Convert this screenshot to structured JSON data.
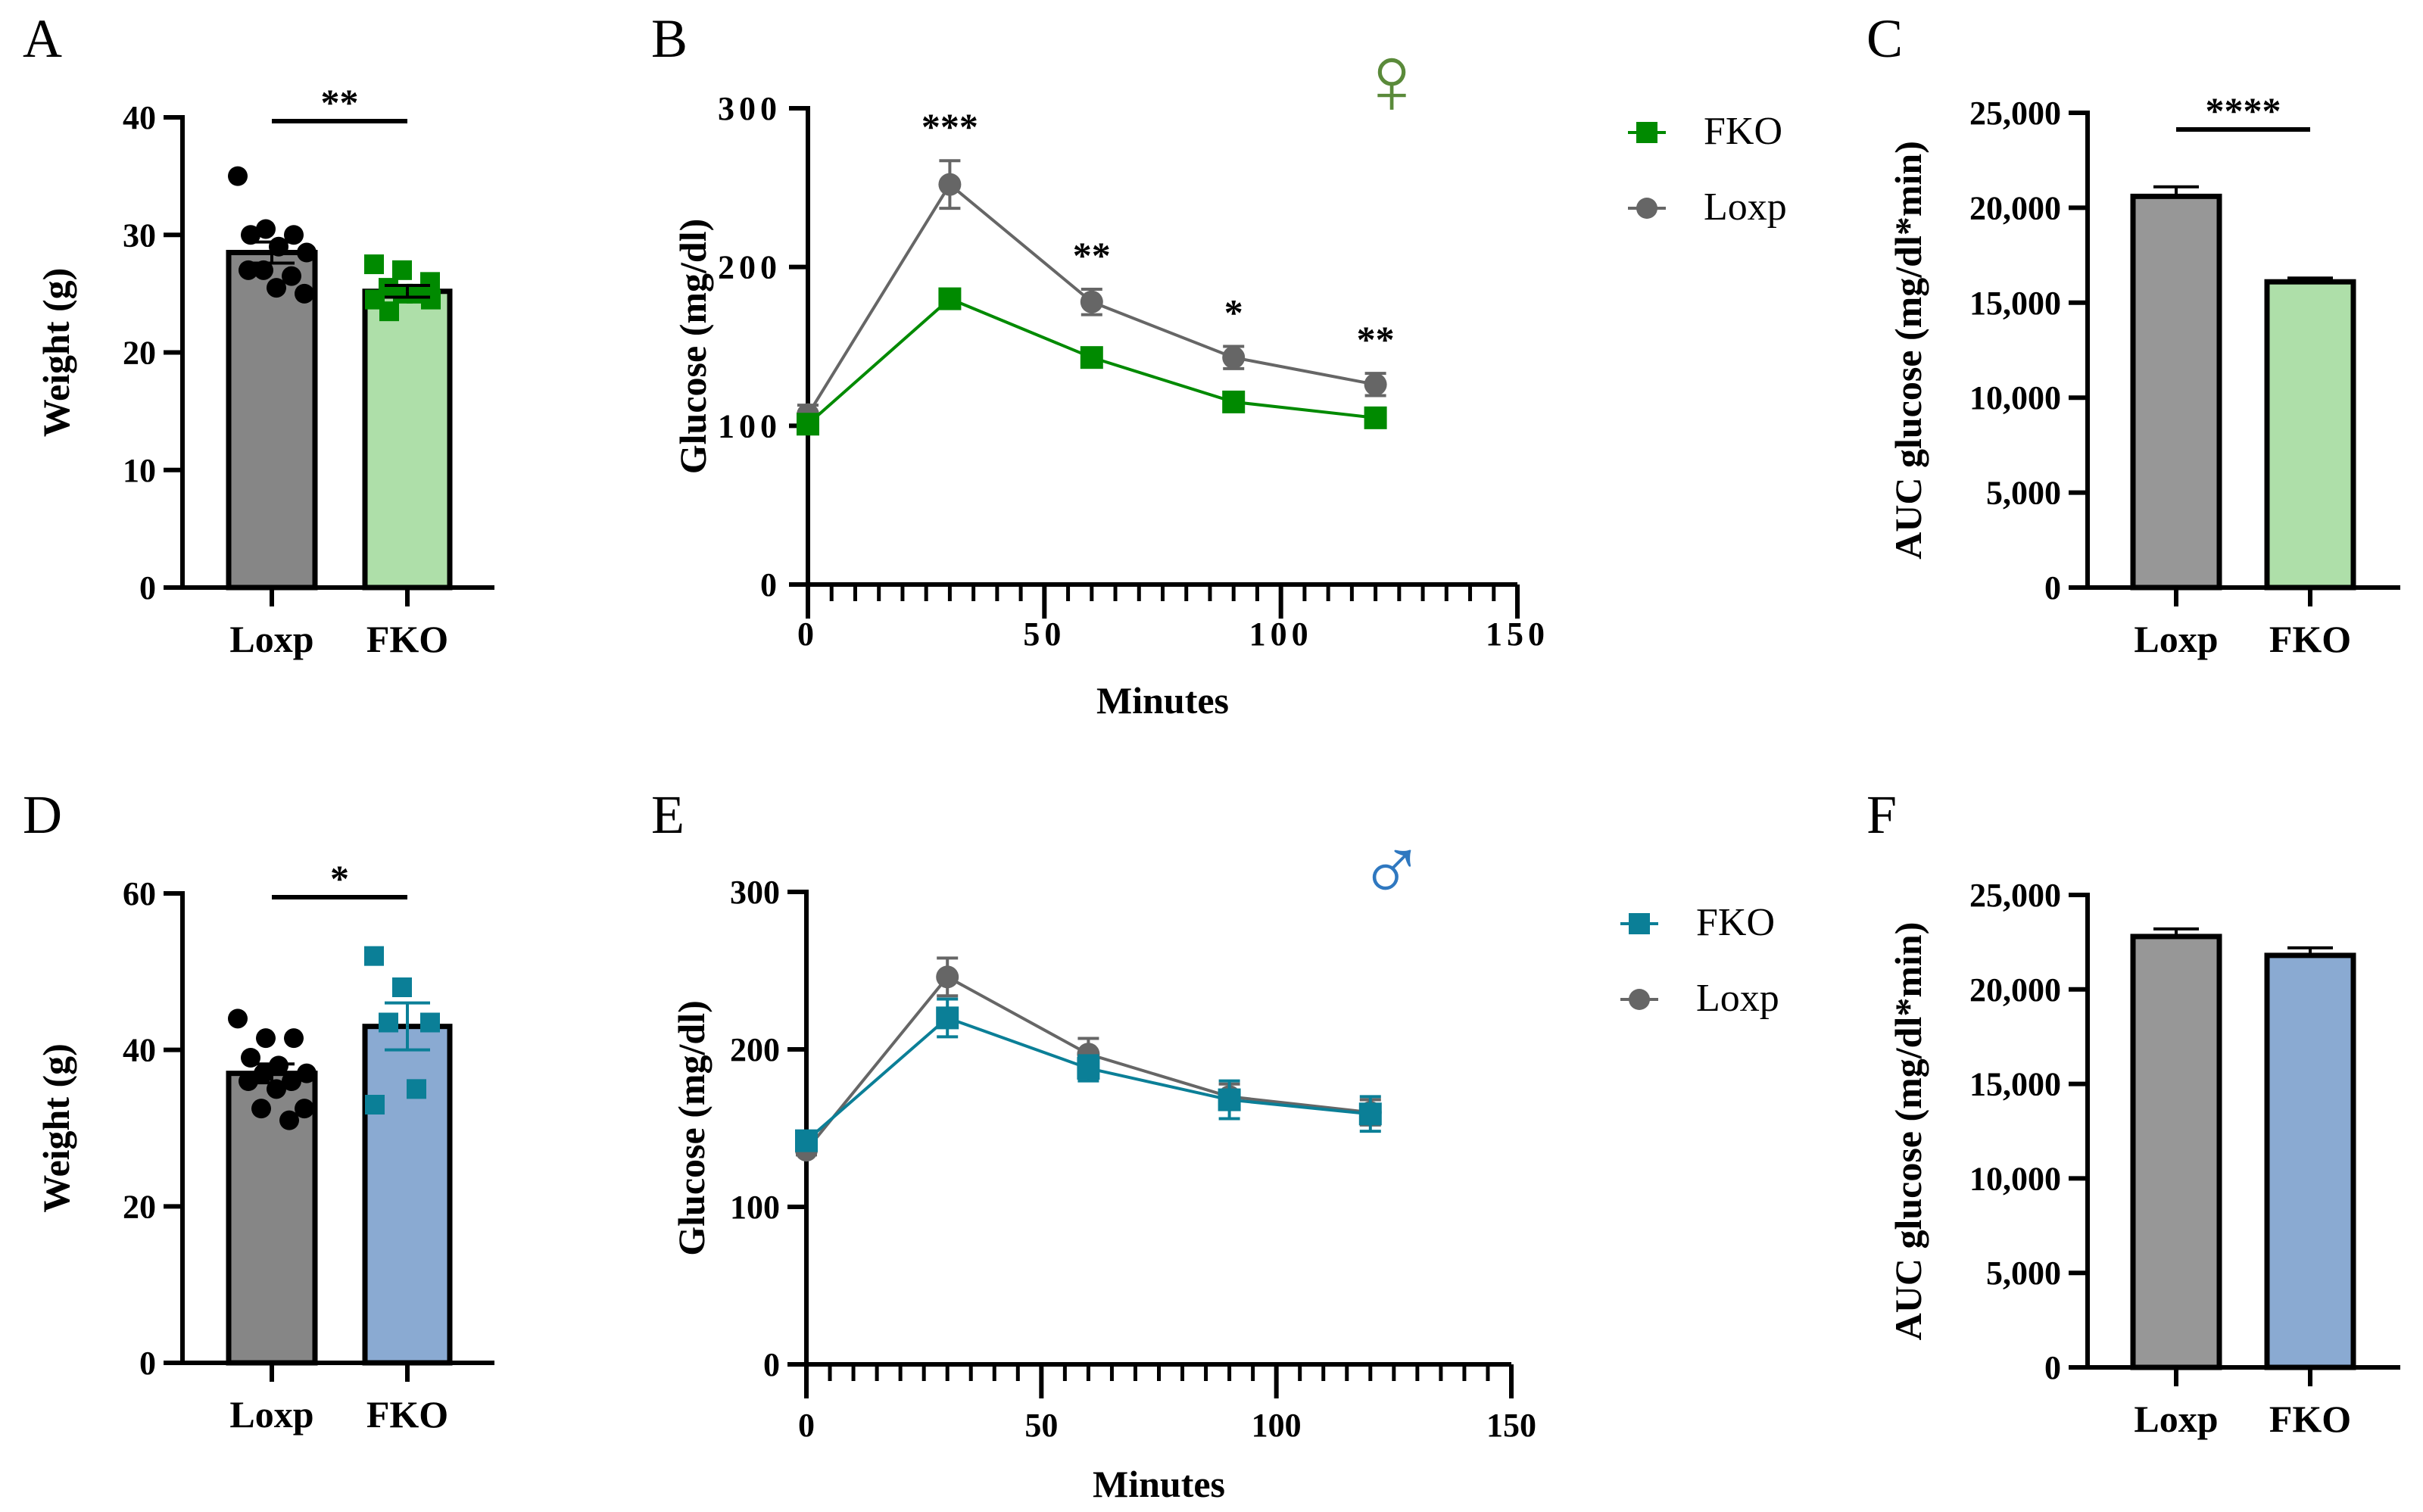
{
  "panels": {
    "A": "A",
    "B": "B",
    "C": "C",
    "D": "D",
    "E": "E",
    "F": "F"
  },
  "colors": {
    "loxp_bar": "#868686",
    "fko_green_bar": "#aedfa9",
    "fko_green": "#008a00",
    "fko_blue_bar": "#8aaad2",
    "fko_teal": "#0b7f97",
    "loxp_line": "#666666",
    "female": "#5a8a3a",
    "male": "#2f78c0"
  },
  "symbols": {
    "female": "♀",
    "male": "♂"
  },
  "chart_data": [
    {
      "id": "A",
      "type": "bar",
      "ylabel": "Weight (g)",
      "xlabel": "",
      "categories": [
        "Loxp",
        "FKO"
      ],
      "values": [
        28.5,
        25.2
      ],
      "sem": [
        0.9,
        0.5
      ],
      "ylim": [
        0,
        40
      ],
      "yticks": [
        "0",
        "10",
        "20",
        "30",
        "40"
      ],
      "significance": "**",
      "points": [
        [
          35,
          30.5,
          30,
          30,
          29,
          28.5,
          27,
          26.5,
          27,
          25.5,
          25
        ],
        [
          27.5,
          27,
          26,
          25.5,
          25,
          24.5,
          25,
          24.5,
          23.5
        ]
      ]
    },
    {
      "id": "B",
      "type": "line",
      "ylabel": "Glucose (mg/dl)",
      "xlabel": "Minutes",
      "x": [
        0,
        30,
        60,
        90,
        120
      ],
      "xlim": [
        0,
        150
      ],
      "ylim": [
        0,
        300
      ],
      "xticks": [
        "0",
        "50",
        "100",
        "150"
      ],
      "yticks": [
        "0",
        "100",
        "200",
        "300"
      ],
      "series": [
        {
          "name": "FKO",
          "values": [
            101,
            180,
            143,
            115,
            105
          ],
          "sem": [
            3,
            3,
            6,
            3,
            3
          ]
        },
        {
          "name": "Loxp",
          "values": [
            107,
            252,
            178,
            143,
            126
          ],
          "sem": [
            6,
            15,
            8,
            7,
            7
          ]
        }
      ],
      "annotations": [
        "",
        "***",
        "**",
        "*",
        "**"
      ],
      "legend": "right"
    },
    {
      "id": "C",
      "type": "bar",
      "ylabel": "AUC glucose (mg/dl*min)",
      "categories": [
        "Loxp",
        "FKO"
      ],
      "values": [
        20600,
        16100
      ],
      "sem": [
        500,
        200
      ],
      "ylim": [
        0,
        25000
      ],
      "yticks": [
        "0",
        "5,000",
        "10,000",
        "15,000",
        "20,000",
        "25,000"
      ],
      "significance": "****"
    },
    {
      "id": "D",
      "type": "bar",
      "ylabel": "Weight (g)",
      "categories": [
        "Loxp",
        "FKO"
      ],
      "values": [
        37,
        43
      ],
      "sem": [
        1.2,
        3
      ],
      "ylim": [
        0,
        60
      ],
      "yticks": [
        "0",
        "20",
        "40",
        "60"
      ],
      "significance": "*",
      "points": [
        [
          44,
          41.5,
          41.5,
          39,
          38,
          37,
          37,
          36,
          36,
          35,
          32.5,
          32.5,
          31
        ],
        [
          52,
          48,
          43.5,
          43.5,
          35,
          33
        ]
      ]
    },
    {
      "id": "E",
      "type": "line",
      "ylabel": "Glucose (mg/dl)",
      "xlabel": "Minutes",
      "x": [
        0,
        30,
        60,
        90,
        120
      ],
      "xlim": [
        0,
        150
      ],
      "ylim": [
        0,
        300
      ],
      "xticks": [
        "0",
        "50",
        "100",
        "150"
      ],
      "yticks": [
        "0",
        "100",
        "200",
        "300"
      ],
      "series": [
        {
          "name": "FKO",
          "values": [
            142,
            220,
            188,
            168,
            159
          ],
          "sem": [
            4,
            12,
            8,
            12,
            11
          ]
        },
        {
          "name": "Loxp",
          "values": [
            136,
            246,
            197,
            170,
            160
          ],
          "sem": [
            3,
            12,
            10,
            8,
            8
          ]
        }
      ],
      "annotations": [
        "",
        "",
        "",
        "",
        ""
      ],
      "legend": "right"
    },
    {
      "id": "F",
      "type": "bar",
      "ylabel": "AUC glucose (mg/dl*min)",
      "categories": [
        "Loxp",
        "FKO"
      ],
      "values": [
        22800,
        21800
      ],
      "sem": [
        400,
        400
      ],
      "ylim": [
        0,
        25000
      ],
      "yticks": [
        "0",
        "5,000",
        "10,000",
        "15,000",
        "20,000",
        "25,000"
      ],
      "significance": ""
    }
  ]
}
